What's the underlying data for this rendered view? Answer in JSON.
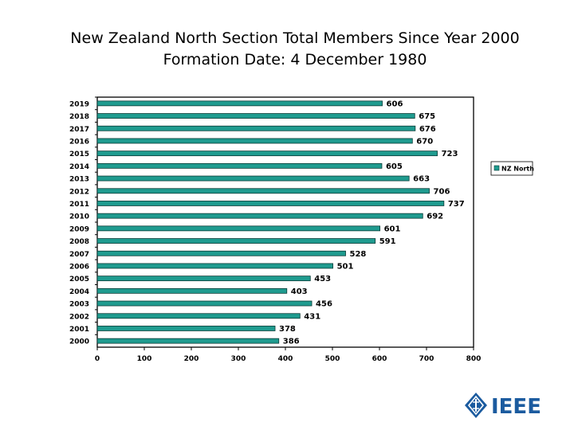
{
  "slide": {
    "title": "New Zealand North Section Total Members Since Year 2000",
    "subtitle": "Formation Date: 4 December 1980"
  },
  "logo": {
    "text": "IEEE",
    "icon": "ieee-diamond-icon"
  },
  "chart_data": {
    "type": "bar",
    "orientation": "horizontal",
    "categories": [
      "2019",
      "2018",
      "2017",
      "2016",
      "2015",
      "2014",
      "2013",
      "2012",
      "2011",
      "2010",
      "2009",
      "2008",
      "2007",
      "2006",
      "2005",
      "2004",
      "2003",
      "2002",
      "2001",
      "2000"
    ],
    "series": [
      {
        "name": "NZ North",
        "values": [
          606,
          675,
          676,
          670,
          723,
          605,
          663,
          706,
          737,
          692,
          601,
          591,
          528,
          501,
          453,
          403,
          456,
          431,
          378,
          386
        ]
      }
    ],
    "xlim": [
      0,
      800
    ],
    "xticks": [
      0,
      100,
      200,
      300,
      400,
      500,
      600,
      700,
      800
    ],
    "data_labels": true,
    "grid": false,
    "legend": "right",
    "colors": {
      "bar": "#1f9b8f",
      "bar_border": "#0b3b36",
      "axis": "#000000"
    }
  }
}
